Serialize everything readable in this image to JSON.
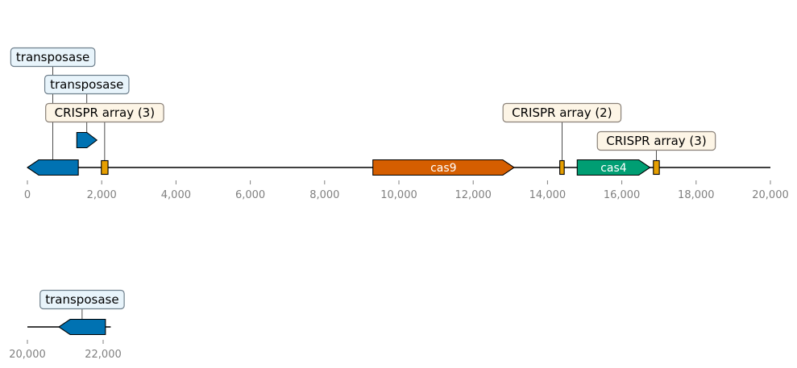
{
  "palette": {
    "transposase": "#0072b2",
    "cas9": "#d55e00",
    "cas4": "#009e73",
    "crispr": "#e69f00",
    "callout_blue_fill": "#e8f4fb",
    "callout_blue_edge": "#6e7f8c",
    "callout_cream_fill": "#fdf5e6",
    "callout_cream_edge": "#8a8178",
    "axis_text": "#808080",
    "backbone": "#000000"
  },
  "tracks": [
    {
      "range": [
        0,
        20000
      ],
      "ticks": [
        "0",
        "2,000",
        "4,000",
        "6,000",
        "8,000",
        "10,000",
        "12,000",
        "14,000",
        "16,000",
        "18,000",
        "20,000"
      ],
      "tick_values": [
        0,
        2000,
        4000,
        6000,
        8000,
        10000,
        12000,
        14000,
        16000,
        18000,
        20000
      ],
      "features": [
        {
          "kind": "transposase",
          "start": 0,
          "end": 1370,
          "strand": -1,
          "label": "transposase",
          "label_mode": "callout",
          "level": 0
        },
        {
          "kind": "transposase",
          "start": 1330,
          "end": 1870,
          "strand": 1,
          "label": "transposase",
          "label_mode": "callout",
          "level": 1
        },
        {
          "kind": "crispr",
          "start": 1990,
          "end": 2170,
          "strand": 0,
          "label": "CRISPR array (3)",
          "label_mode": "callout",
          "level": 2
        },
        {
          "kind": "cas9",
          "start": 9300,
          "end": 13100,
          "strand": 1,
          "label": "cas9",
          "label_mode": "inline",
          "level": 0
        },
        {
          "kind": "crispr",
          "start": 14330,
          "end": 14450,
          "strand": 0,
          "label": "CRISPR array (2)",
          "label_mode": "callout",
          "level": 2
        },
        {
          "kind": "cas4",
          "start": 14800,
          "end": 16760,
          "strand": 1,
          "label": "cas4",
          "label_mode": "inline",
          "level": 0
        },
        {
          "kind": "crispr",
          "start": 16850,
          "end": 17010,
          "strand": 0,
          "label": "CRISPR array (3)",
          "label_mode": "callout",
          "level": 3
        }
      ]
    },
    {
      "range": [
        20000,
        22200
      ],
      "ticks": [
        "20,000",
        "22,000"
      ],
      "tick_values": [
        20000,
        22000
      ],
      "features": [
        {
          "kind": "transposase",
          "start": 20830,
          "end": 22060,
          "strand": -1,
          "label": "transposase",
          "label_mode": "callout",
          "level": 0
        }
      ]
    }
  ]
}
